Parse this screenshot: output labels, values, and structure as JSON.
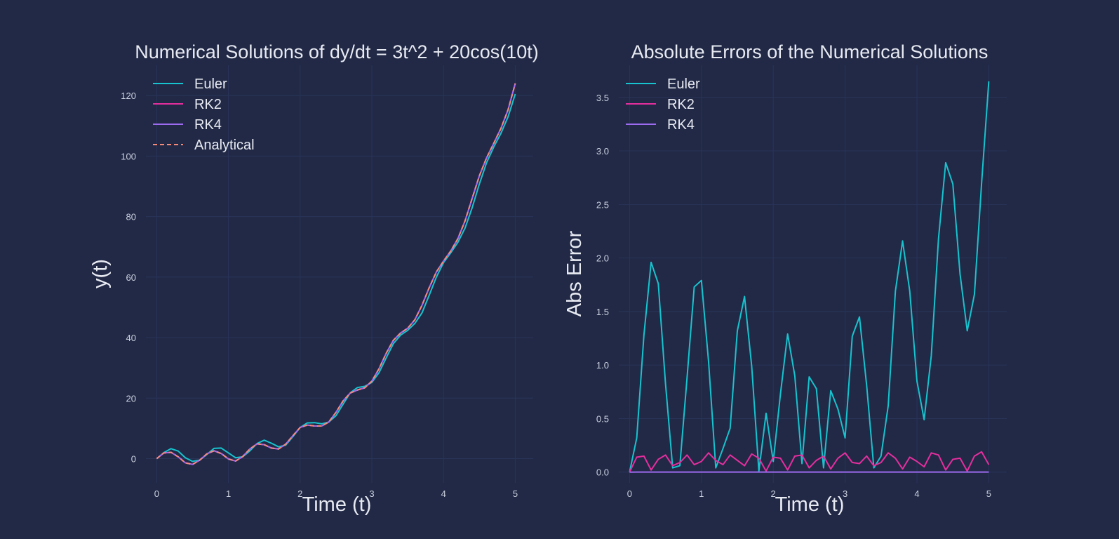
{
  "colors": {
    "background": "#212946",
    "grid": "#2A3459",
    "text": "#E8EAF2",
    "tick_text": "#CDD2E0",
    "euler": "#17C3CE",
    "rk2": "#E52E9E",
    "rk4": "#9D6BF0",
    "analytical": "#F58A79"
  },
  "chart_data": [
    {
      "type": "line",
      "title": "Numerical Solutions of dy/dt = 3t^2 + 20cos(10t)",
      "xlabel": "Time (t)",
      "ylabel": "y(t)",
      "xlim": [
        -0.15,
        5.25
      ],
      "ylim": [
        -8,
        130
      ],
      "xticks": [
        0,
        1,
        2,
        3,
        4,
        5
      ],
      "yticks": [
        0,
        20,
        40,
        60,
        80,
        100,
        120
      ],
      "legend_position": "top-left",
      "x": [
        0,
        0.1,
        0.2,
        0.3,
        0.4,
        0.5,
        0.6,
        0.7,
        0.8,
        0.9,
        1.0,
        1.1,
        1.2,
        1.3,
        1.4,
        1.5,
        1.6,
        1.7,
        1.8,
        1.9,
        2.0,
        2.1,
        2.2,
        2.3,
        2.4,
        2.5,
        2.6,
        2.7,
        2.8,
        2.9,
        3.0,
        3.1,
        3.2,
        3.3,
        3.4,
        3.5,
        3.6,
        3.7,
        3.8,
        3.9,
        4.0,
        4.1,
        4.2,
        4.3,
        4.4,
        4.5,
        4.6,
        4.7,
        4.8,
        4.9,
        5.0
      ],
      "series": [
        {
          "name": "Euler",
          "color_key": "euler",
          "dash": false,
          "values": [
            0,
            2.0,
            3.3,
            2.5,
            0.3,
            -0.9,
            -0.5,
            1.4,
            3.4,
            3.5,
            1.9,
            0.3,
            0.6,
            2.6,
            5.0,
            6.1,
            5.1,
            3.9,
            4.5,
            7.3,
            10.3,
            11.8,
            11.9,
            11.5,
            12.1,
            14.2,
            18.0,
            21.8,
            23.5,
            23.9,
            25.2,
            28.4,
            33.3,
            38.0,
            40.8,
            42.4,
            44.7,
            48.2,
            54.0,
            60.0,
            64.8,
            68.0,
            71.5,
            76.2,
            83.0,
            90.8,
            97.8,
            103.0,
            107.5,
            113.0,
            120.5
          ]
        },
        {
          "name": "RK2",
          "color_key": "rk2",
          "dash": false,
          "values": [
            0,
            1.9,
            2.1,
            0.6,
            -1.4,
            -1.9,
            -0.5,
            1.6,
            2.6,
            1.7,
            -0.1,
            -0.8,
            0.7,
            3.2,
            4.9,
            4.6,
            3.5,
            3.2,
            4.8,
            7.6,
            10.3,
            11.1,
            10.8,
            10.8,
            12.1,
            15.3,
            19.1,
            21.7,
            22.7,
            23.4,
            25.6,
            29.7,
            34.8,
            39.1,
            41.5,
            43.1,
            45.9,
            50.7,
            56.5,
            61.7,
            65.3,
            68.6,
            72.7,
            78.6,
            86.1,
            93.5,
            99.4,
            104.2,
            109.1,
            115.3,
            124.0
          ]
        },
        {
          "name": "RK4",
          "color_key": "rk4",
          "dash": false,
          "values": [
            0,
            1.9,
            2.1,
            0.6,
            -1.4,
            -1.9,
            -0.5,
            1.6,
            2.6,
            1.7,
            -0.1,
            -0.8,
            0.7,
            3.2,
            4.9,
            4.6,
            3.5,
            3.2,
            4.8,
            7.6,
            10.3,
            11.1,
            10.8,
            10.8,
            12.1,
            15.3,
            19.1,
            21.7,
            22.7,
            23.4,
            25.6,
            29.7,
            34.8,
            39.1,
            41.5,
            43.1,
            45.9,
            50.7,
            56.5,
            61.7,
            65.3,
            68.6,
            72.7,
            78.6,
            86.1,
            93.5,
            99.4,
            104.2,
            109.1,
            115.3,
            124.0
          ]
        },
        {
          "name": "Analytical",
          "color_key": "analytical",
          "dash": true,
          "values": [
            0,
            1.9,
            2.1,
            0.6,
            -1.4,
            -1.9,
            -0.5,
            1.6,
            2.6,
            1.7,
            -0.1,
            -0.8,
            0.7,
            3.2,
            4.9,
            4.6,
            3.5,
            3.2,
            4.8,
            7.6,
            10.3,
            11.1,
            10.8,
            10.8,
            12.1,
            15.3,
            19.1,
            21.7,
            22.7,
            23.4,
            25.6,
            29.7,
            34.8,
            39.1,
            41.5,
            43.1,
            45.9,
            50.7,
            56.5,
            61.7,
            65.3,
            68.6,
            72.7,
            78.6,
            86.1,
            93.5,
            99.4,
            104.2,
            109.1,
            115.3,
            124.0
          ]
        }
      ]
    },
    {
      "type": "line",
      "title": "Absolute Errors of the Numerical Solutions",
      "xlabel": "Time (t)",
      "ylabel": "Abs Error",
      "xlim": [
        -0.15,
        5.25
      ],
      "ylim": [
        -0.1,
        3.8
      ],
      "xticks": [
        0,
        1,
        2,
        3,
        4,
        5
      ],
      "yticks": [
        0.0,
        0.5,
        1.0,
        1.5,
        2.0,
        2.5,
        3.0,
        3.5
      ],
      "ytick_format": "0.0",
      "legend_position": "top-left",
      "x": [
        0,
        0.1,
        0.2,
        0.3,
        0.4,
        0.5,
        0.6,
        0.7,
        0.8,
        0.9,
        1.0,
        1.1,
        1.2,
        1.3,
        1.4,
        1.5,
        1.6,
        1.7,
        1.8,
        1.9,
        2.0,
        2.1,
        2.2,
        2.3,
        2.4,
        2.5,
        2.6,
        2.7,
        2.8,
        2.9,
        3.0,
        3.1,
        3.2,
        3.3,
        3.4,
        3.5,
        3.6,
        3.7,
        3.8,
        3.9,
        4.0,
        4.1,
        4.2,
        4.3,
        4.4,
        4.5,
        4.6,
        4.7,
        4.8,
        4.9,
        5.0
      ],
      "series": [
        {
          "name": "Euler",
          "color_key": "euler",
          "dash": false,
          "values": [
            0,
            0.32,
            1.28,
            1.96,
            1.76,
            0.83,
            0.04,
            0.06,
            0.88,
            1.73,
            1.79,
            1.03,
            0.04,
            0.22,
            0.41,
            1.32,
            1.64,
            0.99,
            0.01,
            0.55,
            0.1,
            0.73,
            1.29,
            0.9,
            0.08,
            0.89,
            0.78,
            0.04,
            0.76,
            0.59,
            0.32,
            1.27,
            1.45,
            0.81,
            0.04,
            0.15,
            0.62,
            1.69,
            2.16,
            1.69,
            0.85,
            0.49,
            1.09,
            2.18,
            2.89,
            2.69,
            1.85,
            1.32,
            1.66,
            2.7,
            3.65
          ]
        },
        {
          "name": "RK2",
          "color_key": "rk2",
          "dash": false,
          "values": [
            0,
            0.14,
            0.15,
            0.02,
            0.12,
            0.16,
            0.06,
            0.09,
            0.16,
            0.07,
            0.1,
            0.18,
            0.11,
            0.07,
            0.16,
            0.11,
            0.06,
            0.17,
            0.13,
            0.01,
            0.14,
            0.13,
            0.02,
            0.15,
            0.16,
            0.04,
            0.11,
            0.15,
            0.03,
            0.13,
            0.18,
            0.09,
            0.08,
            0.15,
            0.06,
            0.09,
            0.18,
            0.13,
            0.03,
            0.14,
            0.1,
            0.05,
            0.18,
            0.16,
            0.02,
            0.12,
            0.13,
            0.01,
            0.15,
            0.19,
            0.07
          ]
        },
        {
          "name": "RK4",
          "color_key": "rk4",
          "dash": false,
          "values": [
            0,
            0.001,
            0.001,
            0.001,
            0.001,
            0.001,
            0.001,
            0.001,
            0.001,
            0.001,
            0.001,
            0.001,
            0.001,
            0.001,
            0.001,
            0.001,
            0.001,
            0.001,
            0.001,
            0.001,
            0.001,
            0.001,
            0.001,
            0.001,
            0.001,
            0.001,
            0.001,
            0.001,
            0.001,
            0.001,
            0.001,
            0.001,
            0.001,
            0.001,
            0.001,
            0.001,
            0.001,
            0.001,
            0.001,
            0.001,
            0.001,
            0.001,
            0.001,
            0.001,
            0.001,
            0.001,
            0.001,
            0.001,
            0.001,
            0.001,
            0.001
          ]
        }
      ]
    }
  ]
}
